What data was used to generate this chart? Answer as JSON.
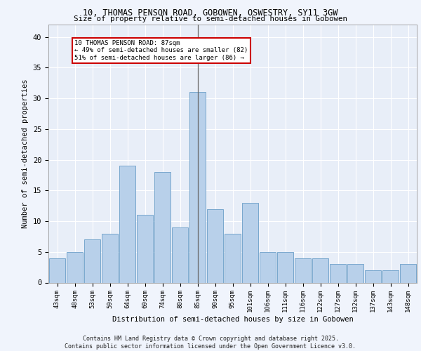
{
  "title1": "10, THOMAS PENSON ROAD, GOBOWEN, OSWESTRY, SY11 3GW",
  "title2": "Size of property relative to semi-detached houses in Gobowen",
  "xlabel": "Distribution of semi-detached houses by size in Gobowen",
  "ylabel": "Number of semi-detached properties",
  "categories": [
    "43sqm",
    "48sqm",
    "53sqm",
    "59sqm",
    "64sqm",
    "69sqm",
    "74sqm",
    "80sqm",
    "85sqm",
    "90sqm",
    "95sqm",
    "101sqm",
    "106sqm",
    "111sqm",
    "116sqm",
    "122sqm",
    "127sqm",
    "132sqm",
    "137sqm",
    "143sqm",
    "148sqm"
  ],
  "values": [
    4,
    5,
    7,
    8,
    19,
    11,
    18,
    9,
    31,
    12,
    8,
    13,
    5,
    5,
    4,
    4,
    3,
    3,
    2,
    2,
    3
  ],
  "bar_color": "#b8d0ea",
  "bar_edge_color": "#6a9ec8",
  "highlight_index": 8,
  "highlight_line_color": "#666666",
  "annotation_text": "10 THOMAS PENSON ROAD: 87sqm\n← 49% of semi-detached houses are smaller (82)\n51% of semi-detached houses are larger (86) →",
  "annotation_box_color": "#ffffff",
  "annotation_box_edge": "#cc0000",
  "background_color": "#e8eef8",
  "grid_color": "#ffffff",
  "footer": "Contains HM Land Registry data © Crown copyright and database right 2025.\nContains public sector information licensed under the Open Government Licence v3.0.",
  "ylim": [
    0,
    42
  ],
  "yticks": [
    0,
    5,
    10,
    15,
    20,
    25,
    30,
    35,
    40
  ],
  "fig_bg": "#f0f4fc"
}
